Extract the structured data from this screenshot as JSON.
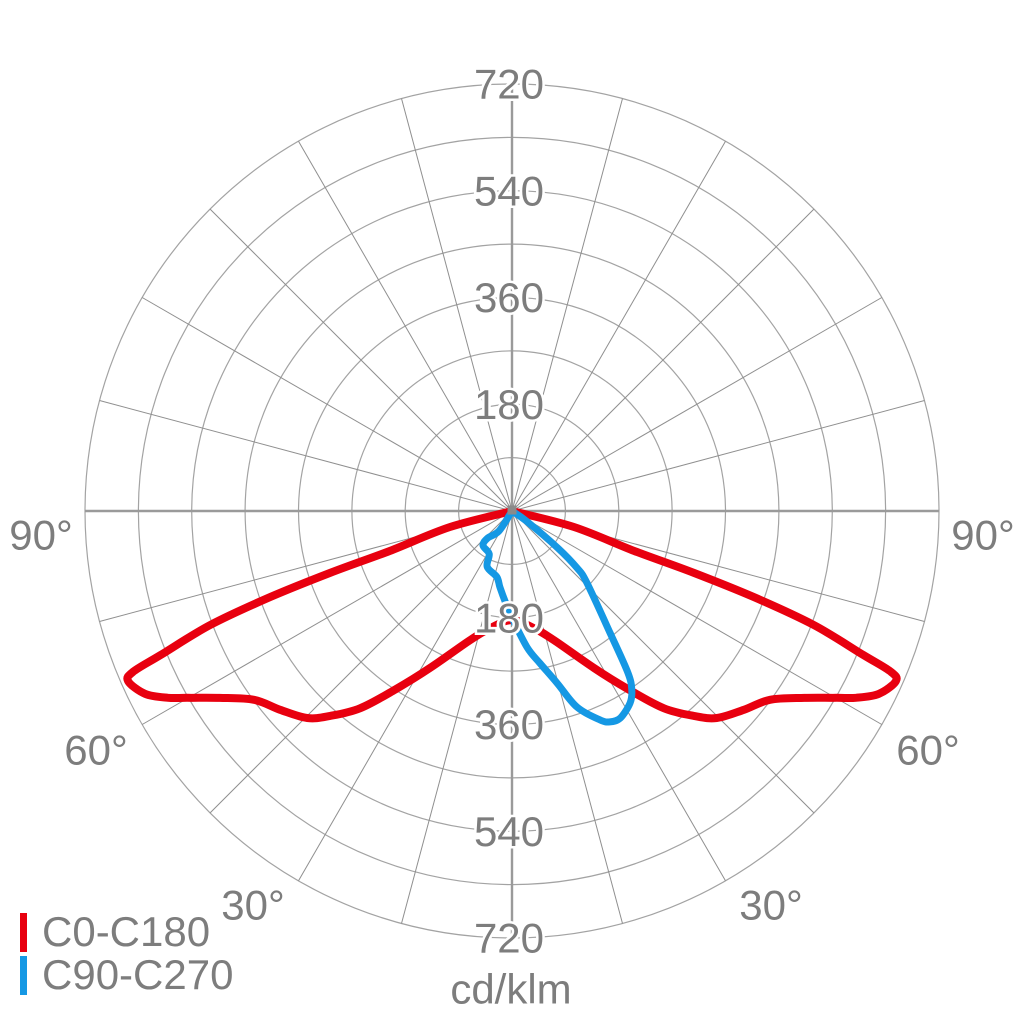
{
  "unit_label": "cd/klm",
  "legend": {
    "items": [
      {
        "label": "C0-C180",
        "color": "#e8000f"
      },
      {
        "label": "C90-C270",
        "color": "#1598e4"
      }
    ]
  },
  "chart_data": {
    "type": "polar_photometric_curve",
    "title": "Luminous intensity distribution",
    "unit": "cd/klm",
    "ring_step": 90,
    "ring_max": 720,
    "rings": [
      90,
      180,
      270,
      360,
      450,
      540,
      630,
      720
    ],
    "spoke_step_deg": 15,
    "radial_tick_labels": [
      "180",
      "360",
      "540",
      "720"
    ],
    "angle_labels": [
      {
        "text": "90°",
        "gamma": 90,
        "side": "left"
      },
      {
        "text": "90°",
        "gamma": 90,
        "side": "right"
      },
      {
        "text": "60°",
        "gamma": 60,
        "side": "left"
      },
      {
        "text": "60°",
        "gamma": 60,
        "side": "right"
      },
      {
        "text": "30°",
        "gamma": 30,
        "side": "left"
      },
      {
        "text": "30°",
        "gamma": 30,
        "side": "right"
      }
    ],
    "colors": {
      "ring": "#a3a3a3",
      "spoke": "#8f8f8f",
      "axis": "#9a9a9a",
      "label": "#7d7d7d",
      "center_dot": "#8a8a8a"
    },
    "series": [
      {
        "name": "C0-C180",
        "color": "#e8000f",
        "stroke_width": 8,
        "closed_at_center": true,
        "points": [
          [
            -75.5,
            108
          ],
          [
            -71.9,
            217
          ],
          [
            -71.2,
            324
          ],
          [
            -70.4,
            433
          ],
          [
            -69.3,
            544
          ],
          [
            -67.7,
            641
          ],
          [
            -67.0,
            694
          ],
          [
            -66.1,
            708
          ],
          [
            -63.5,
            691
          ],
          [
            -61.5,
            660
          ],
          [
            -60.1,
            632
          ],
          [
            -57.4,
            585
          ],
          [
            -53.8,
            539
          ],
          [
            -49.4,
            515
          ],
          [
            -44.7,
            491
          ],
          [
            -41.6,
            462
          ],
          [
            -37.6,
            420
          ],
          [
            -33.2,
            360
          ],
          [
            -27.6,
            299
          ],
          [
            -18.0,
            229
          ],
          [
            -10.6,
            201
          ],
          [
            0,
            184
          ],
          [
            10.6,
            201
          ],
          [
            18.0,
            229
          ],
          [
            27.6,
            299
          ],
          [
            33.2,
            360
          ],
          [
            37.6,
            420
          ],
          [
            41.6,
            462
          ],
          [
            44.7,
            491
          ],
          [
            49.4,
            515
          ],
          [
            53.8,
            539
          ],
          [
            57.4,
            585
          ],
          [
            60.1,
            632
          ],
          [
            61.5,
            660
          ],
          [
            63.5,
            691
          ],
          [
            66.1,
            708
          ],
          [
            67.0,
            694
          ],
          [
            67.7,
            641
          ],
          [
            69.3,
            544
          ],
          [
            70.4,
            433
          ],
          [
            71.2,
            324
          ],
          [
            71.9,
            217
          ],
          [
            75.5,
            108
          ]
        ]
      },
      {
        "name": "C90-C270",
        "color": "#1598e4",
        "stroke_width": 7,
        "closed_at_center": true,
        "points": [
          [
            55,
            30
          ],
          [
            51,
            100
          ],
          [
            48.8,
            146
          ],
          [
            46.2,
            175
          ],
          [
            38.8,
            264
          ],
          [
            35.6,
            336
          ],
          [
            33.8,
            363
          ],
          [
            31.6,
            380
          ],
          [
            27.6,
            394
          ],
          [
            24.9,
            392
          ],
          [
            22.8,
            382
          ],
          [
            18.3,
            348
          ],
          [
            14.7,
            300
          ],
          [
            10.4,
            261
          ],
          [
            6.3,
            231
          ],
          [
            0,
            180
          ],
          [
            -4,
            155
          ],
          [
            -9,
            130
          ],
          [
            -13,
            114
          ],
          [
            -24,
            103
          ],
          [
            -28,
            82
          ],
          [
            -40,
            76
          ],
          [
            -42,
            62
          ],
          [
            -33,
            40
          ]
        ]
      }
    ]
  }
}
